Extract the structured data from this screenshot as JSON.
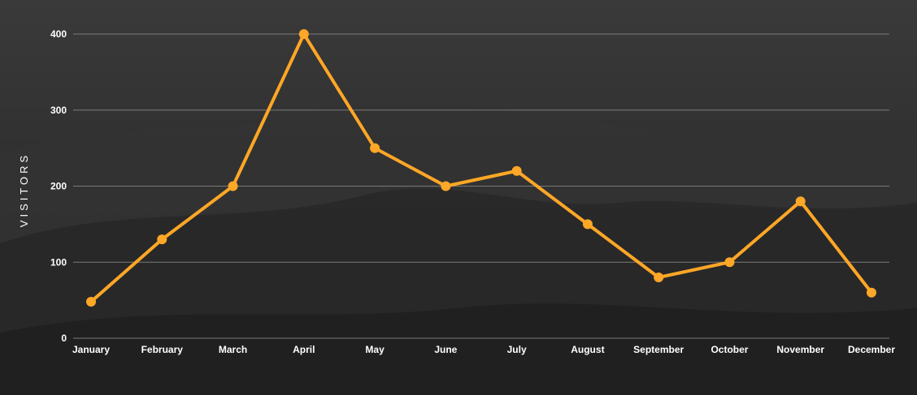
{
  "chart_data": {
    "type": "line",
    "title": "",
    "xlabel": "",
    "ylabel": "VISITORS",
    "categories": [
      "January",
      "February",
      "March",
      "April",
      "May",
      "June",
      "July",
      "August",
      "September",
      "October",
      "November",
      "December"
    ],
    "series": [
      {
        "values": [
          48,
          130,
          200,
          400,
          250,
          200,
          220,
          150,
          80,
          100,
          180,
          60
        ]
      }
    ],
    "ylim": [
      0,
      400
    ],
    "yticks": [
      0,
      100,
      200,
      300,
      400
    ],
    "grid": true,
    "colors": {
      "line": "#FFA726",
      "grid": "#7a7a7a",
      "text": "#ffffff",
      "background": "#2b2b2b"
    }
  }
}
